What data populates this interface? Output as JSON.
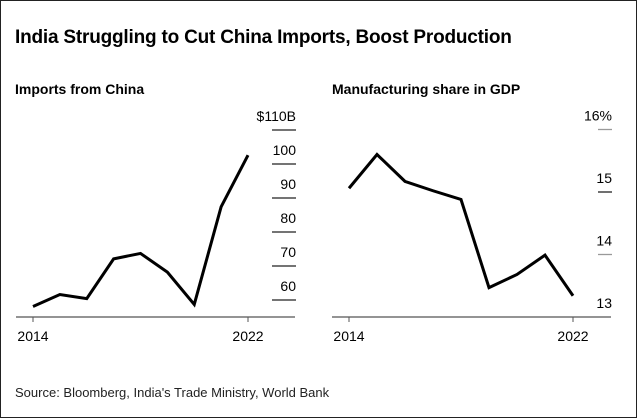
{
  "title": "India Struggling to Cut China Imports, Boost Production",
  "source": "Source: Bloomberg, India's Trade Ministry, World Bank",
  "chart_data": [
    {
      "type": "line",
      "title": "Imports from China",
      "x": [
        2014,
        2015,
        2016,
        2017,
        2018,
        2019,
        2020,
        2021,
        2022
      ],
      "values": [
        58.1,
        61.6,
        60.4,
        72.1,
        73.7,
        68.2,
        58.7,
        87.4,
        102.6
      ],
      "xticks": [
        "2014",
        "2022"
      ],
      "yticks": [
        {
          "v": 110,
          "label": "$110B"
        },
        {
          "v": 100,
          "label": "100"
        },
        {
          "v": 90,
          "label": "90"
        },
        {
          "v": 80,
          "label": "80"
        },
        {
          "v": 70,
          "label": "70"
        },
        {
          "v": 60,
          "label": "60"
        }
      ],
      "ylim": [
        55,
        110
      ],
      "line_color": "#000000"
    },
    {
      "type": "line",
      "title": "Manufacturing share in GDP",
      "x": [
        2014,
        2015,
        2016,
        2017,
        2018,
        2019,
        2020,
        2021,
        2022
      ],
      "values": [
        15.06,
        15.6,
        15.17,
        15.02,
        14.88,
        13.47,
        13.68,
        13.99,
        13.34
      ],
      "xticks": [
        "2014",
        "2022"
      ],
      "yticks": [
        {
          "v": 16,
          "label": "16%"
        },
        {
          "v": 15,
          "label": "15"
        },
        {
          "v": 14,
          "label": "14"
        },
        {
          "v": 13,
          "label": "13"
        }
      ],
      "ylim": [
        13,
        16
      ],
      "line_color": "#000000"
    }
  ]
}
